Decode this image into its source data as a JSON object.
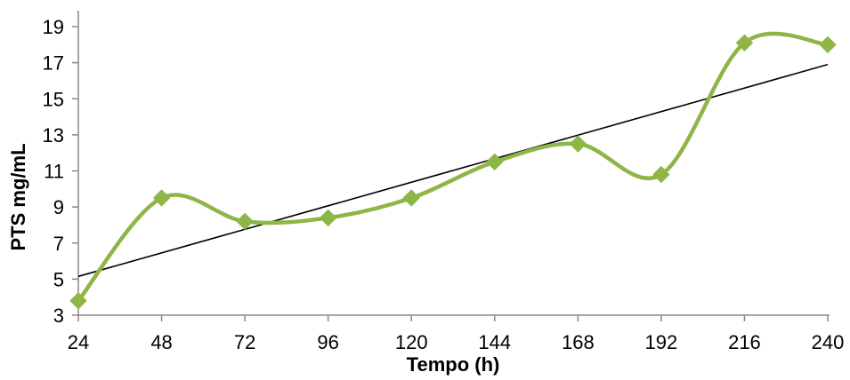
{
  "chart_data": {
    "type": "line",
    "xlabel": "Tempo (h)",
    "ylabel": "PTS mg/mL",
    "x": [
      24,
      48,
      72,
      96,
      120,
      144,
      168,
      192,
      216,
      240
    ],
    "xlim": [
      24,
      240
    ],
    "ylim": [
      3,
      20
    ],
    "yticks": [
      3,
      5,
      7,
      9,
      11,
      13,
      15,
      17,
      19
    ],
    "grid": false,
    "legend": "none",
    "series": [
      {
        "values": [
          3.8,
          9.5,
          8.2,
          8.4,
          9.5,
          11.5,
          12.5,
          10.8,
          18.1,
          18.0
        ],
        "color": "#8db646",
        "marker": "diamond",
        "smooth": true
      }
    ],
    "trendline": {
      "type": "linear",
      "color": "#000000",
      "y_at_xmin": 5.15,
      "y_at_xmax": 16.9
    }
  }
}
